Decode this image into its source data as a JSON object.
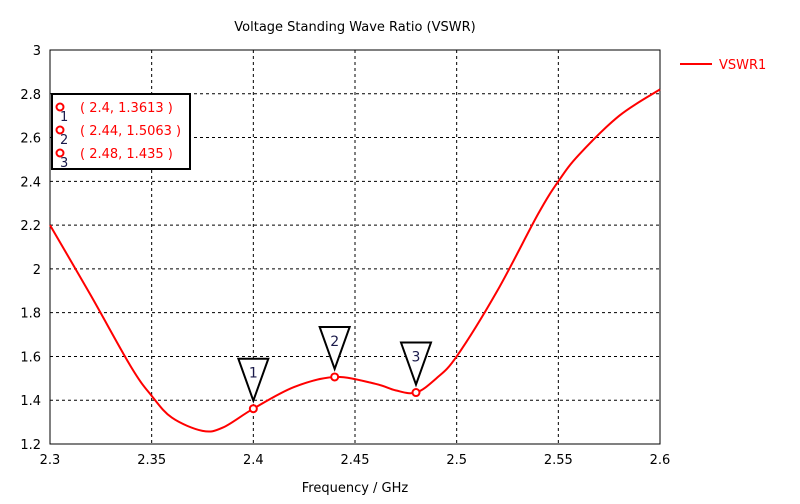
{
  "chart_data": {
    "type": "line",
    "title": "Voltage Standing Wave Ratio (VSWR)",
    "xlabel": "Frequency / GHz",
    "ylabel": "",
    "xlim": [
      2.3,
      2.6
    ],
    "ylim": [
      1.2,
      3
    ],
    "xticks": [
      "2.3",
      "2.35",
      "2.4",
      "2.45",
      "2.5",
      "2.55",
      "2.6"
    ],
    "yticks": [
      "1.2",
      "1.4",
      "1.6",
      "1.8",
      "2",
      "2.2",
      "2.4",
      "2.6",
      "2.8",
      "3"
    ],
    "grid": true,
    "legend": {
      "placement": "right",
      "entries": [
        "VSWR1"
      ]
    },
    "series": [
      {
        "name": "VSWR1",
        "color": "#ff0000",
        "x": [
          2.3,
          2.32,
          2.34,
          2.35,
          2.36,
          2.375,
          2.385,
          2.4,
          2.42,
          2.44,
          2.46,
          2.47,
          2.48,
          2.49,
          2.5,
          2.52,
          2.54,
          2.55,
          2.56,
          2.58,
          2.6
        ],
        "y": [
          2.2,
          1.88,
          1.55,
          1.42,
          1.32,
          1.26,
          1.275,
          1.3613,
          1.46,
          1.5063,
          1.475,
          1.445,
          1.435,
          1.5,
          1.6,
          1.9,
          2.25,
          2.4,
          2.52,
          2.7,
          2.82
        ]
      }
    ],
    "markers": [
      {
        "id": "1",
        "x": 2.4,
        "y": 1.3613,
        "label": "( 2.4, 1.3613 )"
      },
      {
        "id": "2",
        "x": 2.44,
        "y": 1.5063,
        "label": "( 2.44, 1.5063 )"
      },
      {
        "id": "3",
        "x": 2.48,
        "y": 1.435,
        "label": "( 2.48, 1.435 )"
      }
    ]
  }
}
